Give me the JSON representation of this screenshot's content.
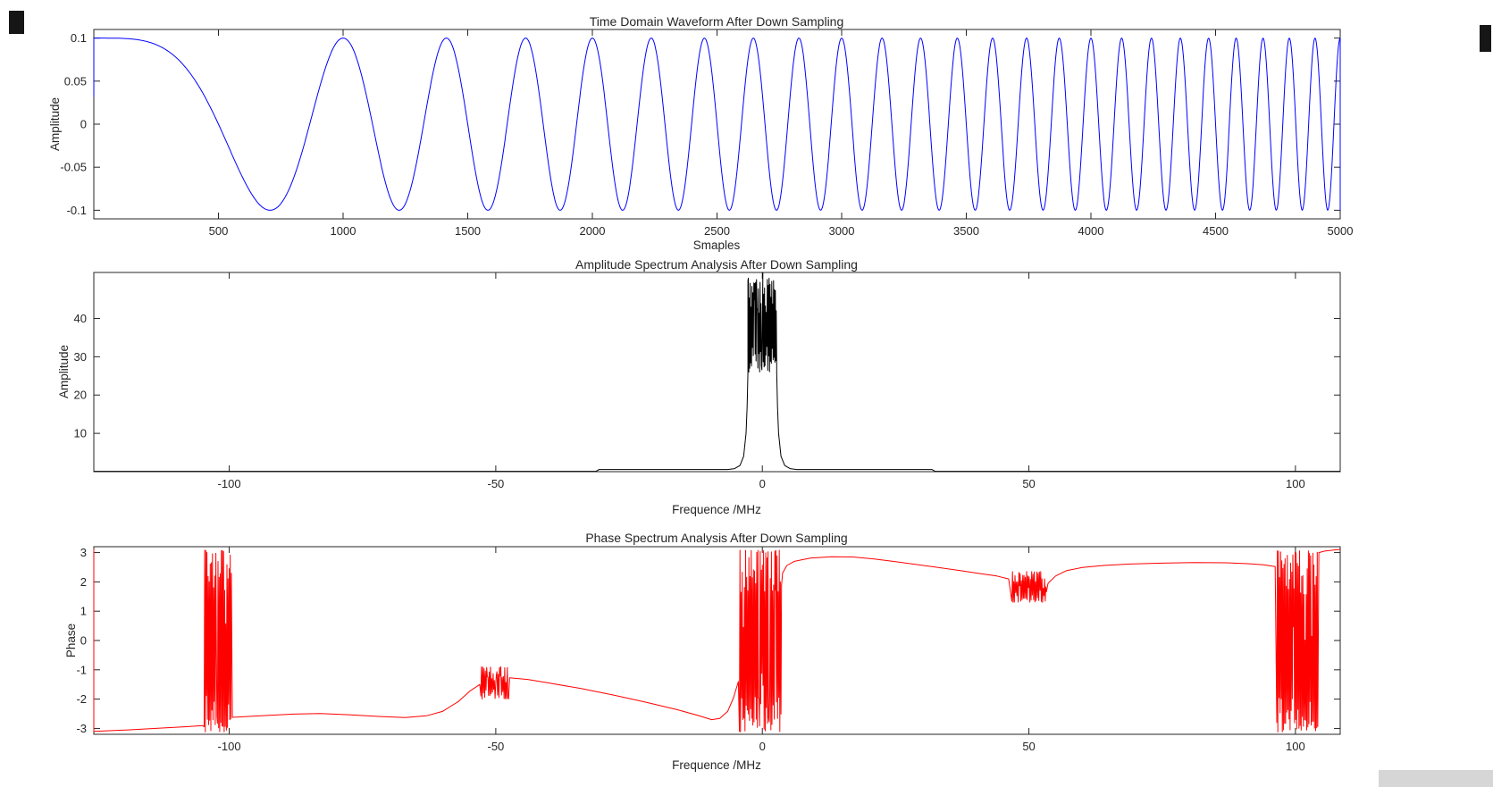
{
  "figure": {
    "background": "#ffffff",
    "axis_color": "#262626",
    "text_color": "#262626"
  },
  "artifacts": {
    "mark_color": "#161616",
    "corner_strip_color": "#d6d6d6"
  },
  "chart_data": [
    {
      "type": "line",
      "title": "Time Domain Waveform After Down Sampling",
      "xlabel": "Smaples",
      "ylabel": "Amplitude",
      "line_color": "#0000ff",
      "grid": false,
      "xlim": [
        0,
        5000
      ],
      "ylim": [
        -0.11,
        0.11
      ],
      "xtick_values": [
        500,
        1000,
        1500,
        2000,
        2500,
        3000,
        3500,
        4000,
        4500,
        5000
      ],
      "xtick_labels": [
        "500",
        "1000",
        "1500",
        "2000",
        "2500",
        "3000",
        "3500",
        "4000",
        "4500",
        "5000"
      ],
      "ytick_values": [
        0.1,
        0.05,
        0,
        -0.05,
        -0.1
      ],
      "ytick_labels": [
        "0.1",
        "0.05",
        "0",
        "-0.05",
        "-0.1"
      ],
      "signal": {
        "kind": "linear_chirp",
        "amplitude": 0.1,
        "sample_start": 0,
        "sample_end": 5000,
        "chirp_ref": 1000,
        "formula": "y = 0.1*cos(2*pi*(x/1000)^2)",
        "total_cycles": 25,
        "edge_line_left": [
          0.032,
          0.1
        ],
        "edge_line_right": [
          0.1,
          -0.1
        ]
      }
    },
    {
      "type": "line",
      "title": "Amplitude Spectrum Analysis After Down Sampling",
      "xlabel": "Frequence /MHz",
      "ylabel": "Amplitude",
      "line_color": "#000000",
      "grid": false,
      "xlim": [
        -125.4,
        108.4
      ],
      "ylim": [
        0,
        52
      ],
      "xtick_values": [
        -100,
        -50,
        0,
        50,
        100
      ],
      "xtick_labels": [
        "-100",
        "-50",
        "0",
        "50",
        "100"
      ],
      "ytick_values": [
        10,
        20,
        30,
        40
      ],
      "ytick_labels": [
        "10",
        "20",
        "30",
        "40"
      ],
      "envelope_pre": [
        [
          -125.4,
          0.1
        ],
        [
          -31.2,
          0.1
        ],
        [
          -30.6,
          0.55
        ],
        [
          -6.5,
          0.55
        ],
        [
          -5.2,
          0.8
        ],
        [
          -4.2,
          1.6
        ],
        [
          -3.5,
          4
        ],
        [
          -3.05,
          10
        ],
        [
          -2.85,
          17
        ],
        [
          -2.7,
          26
        ]
      ],
      "noise_band": {
        "from": -2.7,
        "to": 2.7,
        "min": 26,
        "max": 50.5,
        "spike_value": 52
      },
      "envelope_post": [
        [
          2.7,
          26
        ],
        [
          2.85,
          17
        ],
        [
          3.05,
          10
        ],
        [
          3.5,
          4
        ],
        [
          4.2,
          1.6
        ],
        [
          5.2,
          0.8
        ],
        [
          6.5,
          0.55
        ],
        [
          31.8,
          0.55
        ],
        [
          32.4,
          0.1
        ],
        [
          108.4,
          0.1
        ]
      ],
      "peak_center_mhz": 0,
      "peak_max": 52
    },
    {
      "type": "line",
      "title": "Phase Spectrum Analysis After Down Sampling",
      "xlabel": "Frequence /MHz",
      "ylabel": "Phase",
      "line_color": "#ff0000",
      "grid": false,
      "xlim": [
        -125.4,
        108.4
      ],
      "ylim": [
        -3.2,
        3.2
      ],
      "xtick_values": [
        -100,
        -50,
        0,
        50,
        100
      ],
      "xtick_labels": [
        "-100",
        "-50",
        "0",
        "50",
        "100"
      ],
      "ytick_values": [
        3,
        2,
        1,
        0,
        -1,
        -2,
        -3
      ],
      "ytick_labels": [
        "3",
        "2",
        "1",
        "0",
        "-1",
        "-2",
        "-3"
      ],
      "left_edge_line": [
        3.12,
        -3.1
      ],
      "segments": [
        [
          [
            -125.4,
            -3.1
          ],
          [
            -119,
            -3.05
          ],
          [
            -113,
            -2.99
          ],
          [
            -108,
            -2.94
          ],
          [
            -105,
            -2.9
          ]
        ],
        [
          [
            -99.4,
            -2.62
          ],
          [
            -94,
            -2.57
          ],
          [
            -88,
            -2.51
          ],
          [
            -83,
            -2.49
          ],
          [
            -78,
            -2.53
          ],
          [
            -72,
            -2.59
          ],
          [
            -67,
            -2.63
          ],
          [
            -63,
            -2.57
          ],
          [
            -60,
            -2.42
          ],
          [
            -57,
            -2.08
          ],
          [
            -54.8,
            -1.72
          ],
          [
            -53,
            -1.5
          ]
        ],
        [
          [
            -47.4,
            -1.27
          ],
          [
            -44,
            -1.33
          ],
          [
            -40,
            -1.45
          ],
          [
            -34,
            -1.64
          ],
          [
            -28,
            -1.86
          ],
          [
            -22,
            -2.1
          ],
          [
            -16,
            -2.36
          ],
          [
            -12,
            -2.56
          ],
          [
            -9.5,
            -2.7
          ],
          [
            -8,
            -2.66
          ],
          [
            -6.5,
            -2.42
          ],
          [
            -5.4,
            -1.95
          ],
          [
            -4.5,
            -1.4
          ]
        ],
        [
          [
            3.8,
            2.3
          ],
          [
            4.6,
            2.56
          ],
          [
            6,
            2.7
          ],
          [
            9,
            2.81
          ],
          [
            13,
            2.86
          ],
          [
            17,
            2.85
          ],
          [
            21,
            2.78
          ],
          [
            25,
            2.69
          ],
          [
            29,
            2.59
          ],
          [
            33,
            2.49
          ],
          [
            37,
            2.39
          ],
          [
            41,
            2.28
          ],
          [
            44,
            2.2
          ],
          [
            46.2,
            2.1
          ]
        ],
        [
          [
            53.6,
            1.95
          ],
          [
            55,
            2.2
          ],
          [
            57,
            2.38
          ],
          [
            60,
            2.49
          ],
          [
            64,
            2.56
          ],
          [
            69,
            2.61
          ],
          [
            75,
            2.64
          ],
          [
            81,
            2.66
          ],
          [
            87,
            2.65
          ],
          [
            91,
            2.62
          ],
          [
            94,
            2.58
          ],
          [
            96.2,
            2.52
          ]
        ],
        [
          [
            104.4,
            3.0
          ],
          [
            105.5,
            3.05
          ],
          [
            107,
            3.08
          ],
          [
            108.4,
            3.11
          ]
        ]
      ],
      "bursts": [
        {
          "from": -104.7,
          "to": -99.6,
          "min": -3.12,
          "max": 3.08
        },
        {
          "from": -4.3,
          "to": 3.6,
          "min": -3.12,
          "max": 3.08
        },
        {
          "from": 96.5,
          "to": 104.2,
          "min": -3.12,
          "max": 3.06
        }
      ],
      "noise_patches": [
        {
          "from": -52.8,
          "to": -47.6,
          "min": -2.0,
          "max": -0.9
        },
        {
          "from": 46.8,
          "to": 53.3,
          "min": 1.3,
          "max": 2.35
        }
      ]
    }
  ]
}
